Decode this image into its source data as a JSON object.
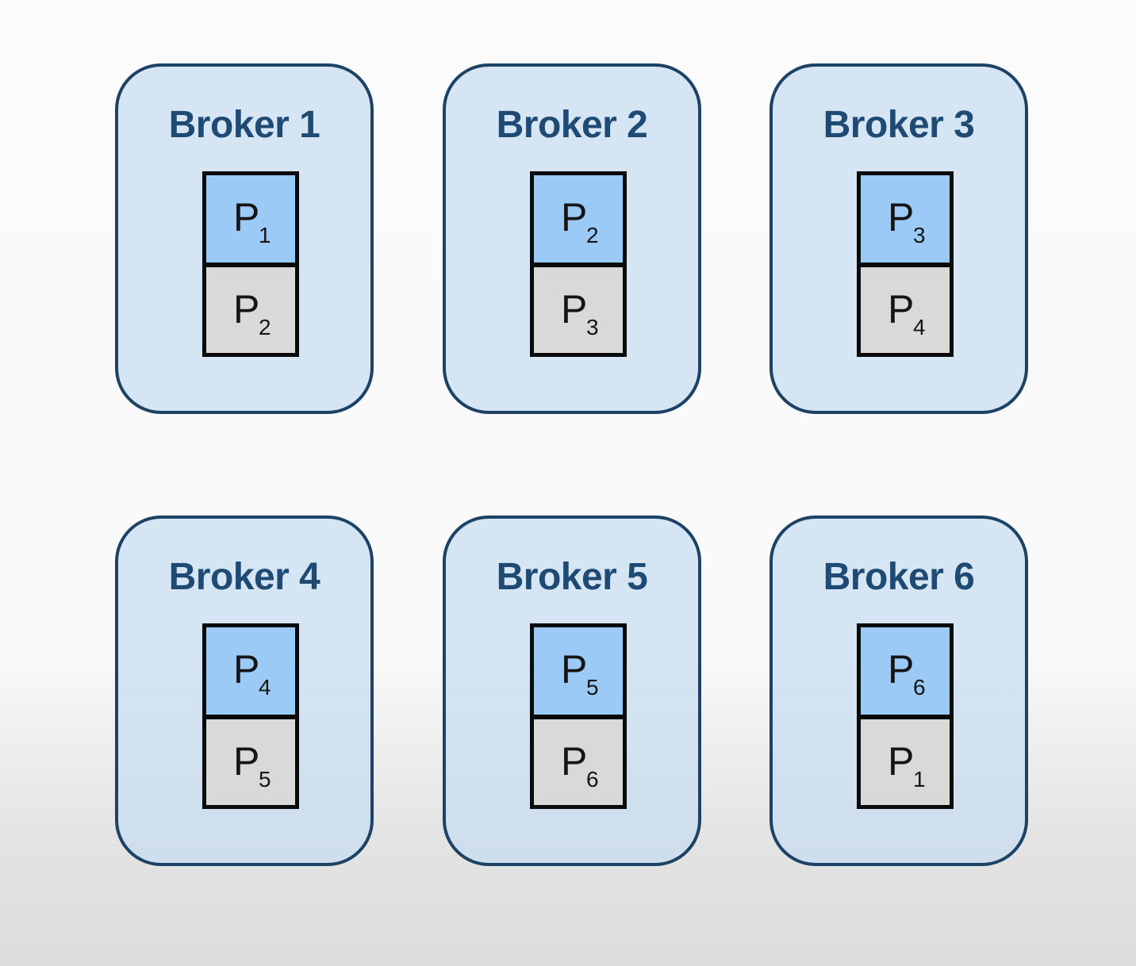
{
  "diagram": {
    "brokers": [
      {
        "name": "Broker 1",
        "leader": {
          "letter": "P",
          "index": "1"
        },
        "replica": {
          "letter": "P",
          "index": "2"
        }
      },
      {
        "name": "Broker 2",
        "leader": {
          "letter": "P",
          "index": "2"
        },
        "replica": {
          "letter": "P",
          "index": "3"
        }
      },
      {
        "name": "Broker 3",
        "leader": {
          "letter": "P",
          "index": "3"
        },
        "replica": {
          "letter": "P",
          "index": "4"
        }
      },
      {
        "name": "Broker 4",
        "leader": {
          "letter": "P",
          "index": "4"
        },
        "replica": {
          "letter": "P",
          "index": "5"
        }
      },
      {
        "name": "Broker 5",
        "leader": {
          "letter": "P",
          "index": "5"
        },
        "replica": {
          "letter": "P",
          "index": "6"
        }
      },
      {
        "name": "Broker 6",
        "leader": {
          "letter": "P",
          "index": "6"
        },
        "replica": {
          "letter": "P",
          "index": "1"
        }
      }
    ],
    "colors": {
      "broker_border": "#1c4366",
      "broker_title": "#1e4a73",
      "leader_fill": "#9ccaf7",
      "replica_fill": "#d9d9d9"
    }
  }
}
